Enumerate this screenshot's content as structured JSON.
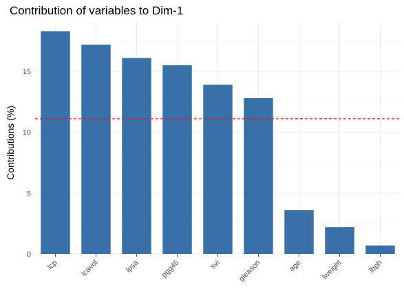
{
  "chart_data": {
    "type": "bar",
    "title": "Contribution of variables to Dim-1",
    "xlabel": "",
    "ylabel": "Contributions (%)",
    "categories": [
      "lcp",
      "lcavol",
      "lpsa",
      "pgg45",
      "svi",
      "gleason",
      "age",
      "lweight",
      "lbph"
    ],
    "values": [
      18.3,
      17.2,
      16.1,
      15.5,
      13.9,
      12.8,
      3.6,
      2.2,
      0.7
    ],
    "ylim": [
      0,
      19
    ],
    "yticks": [
      0,
      5,
      10,
      15
    ],
    "threshold": 11.11,
    "bar_color": "#3a70a8",
    "threshold_color": "#e41a1c",
    "grid": true,
    "legend": "none"
  }
}
